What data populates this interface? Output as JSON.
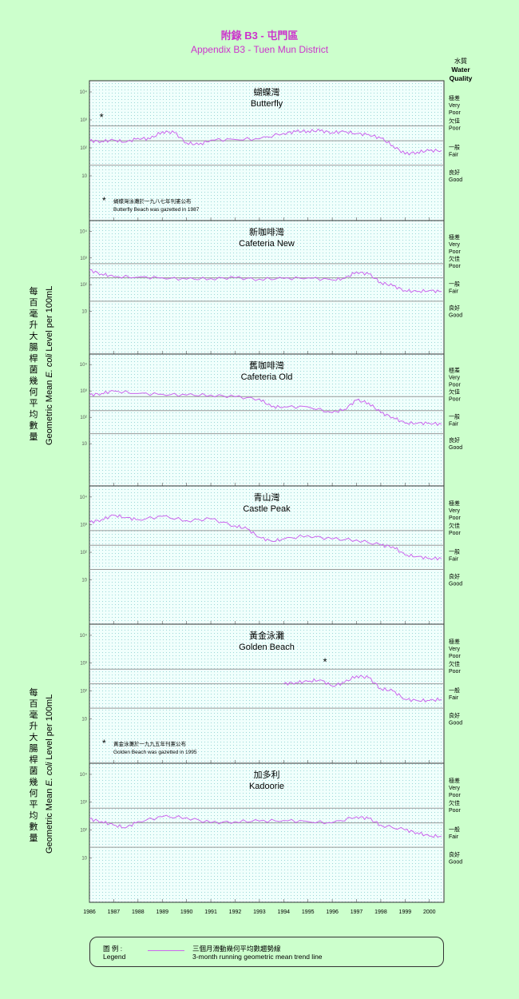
{
  "header": {
    "title_zh": "附錄 B3 - 屯門區",
    "title_en": "Appendix B3 - Tuen Mun District"
  },
  "water_quality_header": {
    "zh": "水質",
    "en_line1": "Water",
    "en_line2": "Quality"
  },
  "y_axis_label": {
    "zh": "每百毫升大腸桿菌幾何平均數量",
    "en_prefix": "Geometric Mean ",
    "en_italic": "E. coli",
    "en_suffix": " Level per 100mL"
  },
  "legend": {
    "label_zh": "圖 例 :",
    "label_en": "Legend",
    "desc_zh": "三個月滑動幾何平均數趨勢線",
    "desc_en": "3-month running geometric mean trend line"
  },
  "colors": {
    "background": "#ccffcc",
    "plot_bg": "#f0fffc",
    "grid_dot": "#9ad7d7",
    "trend": "#cc66ee",
    "threshold": "#999999",
    "title": "#cc33cc"
  },
  "chart_data": [
    {
      "type": "line",
      "name_zh": "蝴蝶灣",
      "name_en": "Butterfly",
      "yticks": [
        "10⁴",
        "10³",
        "10²",
        "10"
      ],
      "ylim": [
        1,
        100000
      ],
      "yscale": "log",
      "x": [
        1986.0,
        1986.5,
        1987.0,
        1987.5,
        1988.0,
        1988.5,
        1989.0,
        1989.5,
        1990.0,
        1990.5,
        1991.0,
        1992.0,
        1993.0,
        1994.0,
        1994.5,
        1995.0,
        1995.5,
        1996.0,
        1996.5,
        1997.0,
        1997.5,
        1998.0,
        1998.5,
        1999.0,
        1999.5,
        2000.0,
        2000.5
      ],
      "values": [
        180,
        170,
        190,
        160,
        220,
        210,
        380,
        350,
        150,
        130,
        190,
        200,
        210,
        330,
        380,
        400,
        410,
        350,
        380,
        320,
        300,
        220,
        120,
        60,
        70,
        80,
        80
      ],
      "marker_star": {
        "x": 1986.5,
        "y": 1200
      },
      "note_zh": "蝴蝶灣泳灘於一九八七年刊憲公布",
      "note_en": "Butterfly Beach was gazetted in  1987"
    },
    {
      "type": "line",
      "name_zh": "新咖啡灣",
      "name_en": "Cafeteria New",
      "yticks": [
        "10⁴",
        "10³",
        "10²",
        "10"
      ],
      "ylim": [
        1,
        100000
      ],
      "yscale": "log",
      "x": [
        1986.0,
        1986.5,
        1987.0,
        1988.0,
        1989.0,
        1990.0,
        1991.0,
        1992.0,
        1993.0,
        1994.0,
        1995.0,
        1996.0,
        1996.5,
        1997.0,
        1997.5,
        1998.0,
        1998.5,
        1999.0,
        1999.5,
        2000.0,
        2000.5
      ],
      "values": [
        350,
        250,
        200,
        190,
        180,
        160,
        170,
        180,
        160,
        170,
        180,
        150,
        170,
        300,
        250,
        120,
        90,
        60,
        55,
        60,
        55
      ],
      "marker_star": null,
      "note_zh": "",
      "note_en": ""
    },
    {
      "type": "line",
      "name_zh": "舊咖啡灣",
      "name_en": "Cafeteria Old",
      "yticks": [
        "10⁴",
        "10³",
        "10²",
        "10"
      ],
      "ylim": [
        1,
        100000
      ],
      "yscale": "log",
      "x": [
        1986.0,
        1986.5,
        1987.0,
        1988.0,
        1989.0,
        1990.0,
        1991.0,
        1992.0,
        1993.0,
        1993.5,
        1994.0,
        1995.0,
        1996.0,
        1996.5,
        1997.0,
        1997.5,
        1998.0,
        1998.5,
        1999.0,
        1999.5,
        2000.0,
        2000.5
      ],
      "values": [
        700,
        800,
        1000,
        800,
        750,
        700,
        700,
        600,
        500,
        250,
        250,
        250,
        150,
        200,
        450,
        350,
        150,
        100,
        60,
        60,
        60,
        55
      ],
      "marker_star": null,
      "note_zh": "",
      "note_en": ""
    },
    {
      "type": "line",
      "name_zh": "青山灣",
      "name_en": "Castle Peak",
      "yticks": [
        "10⁴",
        "10³",
        "10²",
        "10"
      ],
      "ylim": [
        1,
        100000
      ],
      "yscale": "log",
      "x": [
        1986.0,
        1986.5,
        1987.0,
        1987.5,
        1988.0,
        1989.0,
        1990.0,
        1991.0,
        1992.0,
        1992.5,
        1993.0,
        1993.5,
        1994.0,
        1995.0,
        1996.0,
        1997.0,
        1998.0,
        1998.5,
        1999.0,
        1999.5,
        2000.0,
        2000.5
      ],
      "values": [
        1200,
        1500,
        2200,
        1800,
        1500,
        2000,
        1400,
        1600,
        900,
        700,
        350,
        250,
        300,
        400,
        300,
        280,
        180,
        160,
        80,
        70,
        60,
        60
      ],
      "marker_star": null,
      "note_zh": "",
      "note_en": ""
    },
    {
      "type": "line",
      "name_zh": "黃金泳灘",
      "name_en": "Golden Beach",
      "yticks": [
        "10⁴",
        "10³",
        "10²",
        "10"
      ],
      "ylim": [
        1,
        100000
      ],
      "yscale": "log",
      "x": [
        1994.0,
        1994.5,
        1995.0,
        1995.5,
        1996.0,
        1996.5,
        1997.0,
        1997.5,
        1998.0,
        1998.5,
        1999.0,
        1999.5,
        2000.0,
        2000.5
      ],
      "values": [
        180,
        200,
        220,
        250,
        150,
        200,
        350,
        300,
        120,
        100,
        50,
        45,
        45,
        50
      ],
      "marker_star": {
        "x": 1995.7,
        "y": 1100
      },
      "note_zh": "黃金泳灘於一九九五年刊憲公布",
      "note_en": "Golden Beach was gazetted in 1995"
    },
    {
      "type": "line",
      "name_zh": "加多利",
      "name_en": "Kadoorie",
      "yticks": [
        "10⁴",
        "10³",
        "10²",
        "10"
      ],
      "ylim": [
        1,
        100000
      ],
      "yscale": "log",
      "x": [
        1986.0,
        1986.5,
        1987.0,
        1987.5,
        1988.0,
        1989.0,
        1990.0,
        1991.0,
        1992.0,
        1993.0,
        1994.0,
        1995.0,
        1996.0,
        1997.0,
        1997.5,
        1998.0,
        1999.0,
        1999.5,
        2000.0,
        2000.5
      ],
      "values": [
        250,
        200,
        150,
        120,
        200,
        300,
        280,
        180,
        200,
        210,
        220,
        200,
        180,
        300,
        260,
        150,
        100,
        80,
        60,
        60
      ],
      "marker_star": null,
      "note_zh": "",
      "note_en": ""
    }
  ],
  "x_axis": {
    "ticks": [
      "1986",
      "1987",
      "1988",
      "1989",
      "1990",
      "1991",
      "1992",
      "1993",
      "1994",
      "1995",
      "1996",
      "1997",
      "1998",
      "1999",
      "2000"
    ]
  },
  "quality_bands": {
    "thresholds": [
      610,
      180,
      24
    ],
    "labels": [
      {
        "zh": "極差",
        "en1": "Very",
        "en2": "Poor"
      },
      {
        "zh": "欠佳",
        "en1": "Poor",
        "en2": ""
      },
      {
        "zh": "一般",
        "en1": "Fair",
        "en2": ""
      },
      {
        "zh": "良好",
        "en1": "Good",
        "en2": ""
      }
    ]
  }
}
